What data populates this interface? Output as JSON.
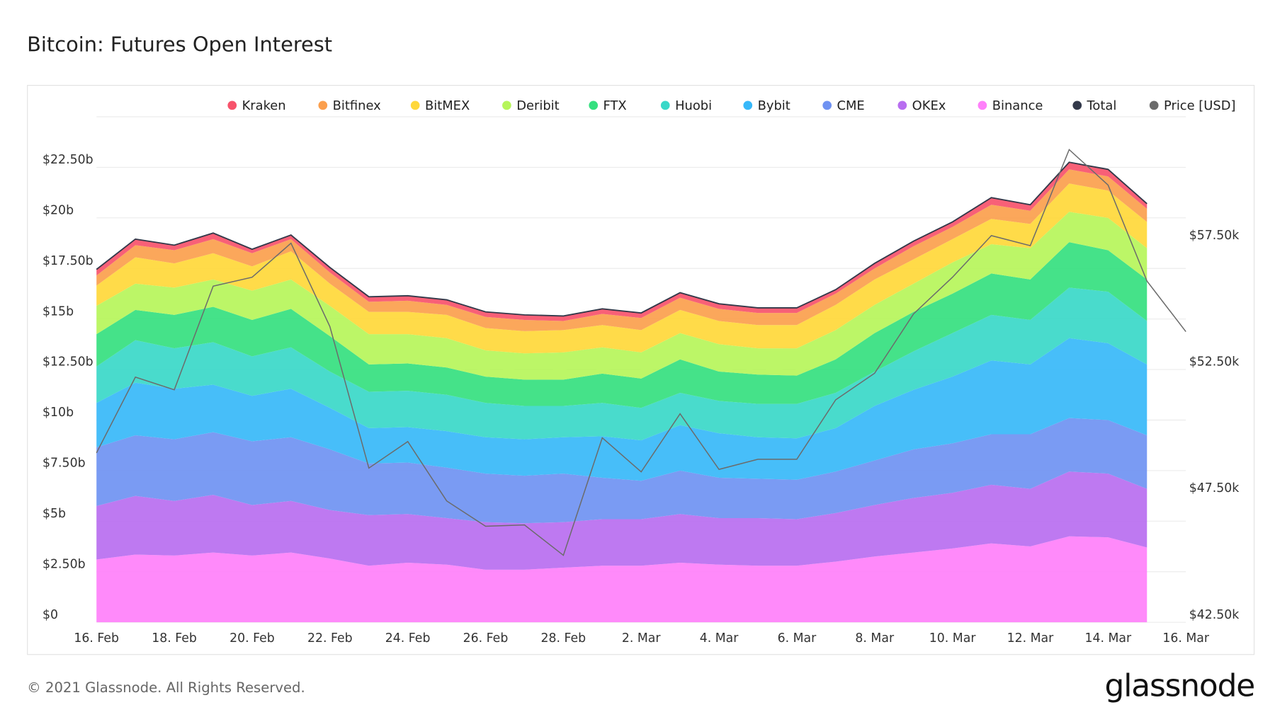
{
  "chart_data": {
    "type": "area",
    "title": "Bitcoin: Futures Open Interest",
    "stacked": true,
    "x": [
      0,
      1,
      2,
      3,
      4,
      5,
      6,
      7,
      8,
      9,
      10,
      11,
      12,
      13,
      14,
      15,
      16,
      17,
      18,
      19,
      20,
      21,
      22,
      23,
      24,
      25,
      26,
      27,
      28
    ],
    "xlim": [
      0,
      28
    ],
    "xticks": [
      {
        "value": 0,
        "label": "16. Feb"
      },
      {
        "value": 2,
        "label": "18. Feb"
      },
      {
        "value": 4,
        "label": "20. Feb"
      },
      {
        "value": 6,
        "label": "22. Feb"
      },
      {
        "value": 8,
        "label": "24. Feb"
      },
      {
        "value": 10,
        "label": "26. Feb"
      },
      {
        "value": 12,
        "label": "28. Feb"
      },
      {
        "value": 14,
        "label": "2. Mar"
      },
      {
        "value": 16,
        "label": "4. Mar"
      },
      {
        "value": 18,
        "label": "6. Mar"
      },
      {
        "value": 20,
        "label": "8. Mar"
      },
      {
        "value": 22,
        "label": "10. Mar"
      },
      {
        "value": 24,
        "label": "12. Mar"
      },
      {
        "value": 26,
        "label": "14. Mar"
      },
      {
        "value": 28,
        "label": "16. Mar"
      }
    ],
    "ylim": [
      0,
      25
    ],
    "yticks": [
      {
        "value": 0,
        "label": "$0"
      },
      {
        "value": 2.5,
        "label": "$2.50b"
      },
      {
        "value": 5,
        "label": "$5b"
      },
      {
        "value": 7.5,
        "label": "$7.50b"
      },
      {
        "value": 10,
        "label": "$10b"
      },
      {
        "value": 12.5,
        "label": "$12.50b"
      },
      {
        "value": 15,
        "label": "$15b"
      },
      {
        "value": 17.5,
        "label": "$17.50b"
      },
      {
        "value": 20,
        "label": "$20b"
      },
      {
        "value": 22.5,
        "label": "$22.50b"
      }
    ],
    "y2lim": [
      42500,
      62500
    ],
    "y2ticks": [
      {
        "value": 42500,
        "label": "$42.50k"
      },
      {
        "value": 47500,
        "label": "$47.50k"
      },
      {
        "value": 52500,
        "label": "$52.50k"
      },
      {
        "value": 57500,
        "label": "$57.50k"
      }
    ],
    "grid": true,
    "series": [
      {
        "name": "Kraken",
        "color": "#f7536b",
        "values": [
          0.3,
          0.3,
          0.25,
          0.3,
          0.2,
          0.2,
          0.25,
          0.25,
          0.25,
          0.25,
          0.25,
          0.25,
          0.25,
          0.25,
          0.25,
          0.25,
          0.25,
          0.25,
          0.25,
          0.2,
          0.25,
          0.25,
          0.25,
          0.35,
          0.3,
          0.35,
          0.35,
          0.25,
          null
        ]
      },
      {
        "name": "Bitfinex",
        "color": "#fb9f4d",
        "values": [
          0.5,
          0.6,
          0.65,
          0.7,
          0.65,
          0.6,
          0.55,
          0.5,
          0.55,
          0.5,
          0.55,
          0.55,
          0.45,
          0.55,
          0.6,
          0.6,
          0.6,
          0.6,
          0.6,
          0.55,
          0.55,
          0.65,
          0.6,
          0.7,
          0.65,
          0.7,
          0.7,
          0.65,
          null
        ]
      },
      {
        "name": "BitMEX",
        "color": "#ffd83a",
        "values": [
          1.0,
          1.3,
          1.2,
          1.3,
          1.2,
          1.4,
          1.1,
          1.1,
          1.1,
          1.15,
          1.1,
          1.1,
          1.1,
          1.1,
          1.1,
          1.15,
          1.15,
          1.15,
          1.15,
          1.25,
          1.25,
          1.2,
          1.15,
          1.25,
          1.2,
          1.4,
          1.35,
          1.3,
          null
        ]
      },
      {
        "name": "Deribit",
        "color": "#b6f55a",
        "values": [
          1.4,
          1.3,
          1.35,
          1.35,
          1.45,
          1.45,
          1.5,
          1.5,
          1.45,
          1.45,
          1.3,
          1.3,
          1.35,
          1.3,
          1.3,
          1.3,
          1.35,
          1.3,
          1.35,
          1.45,
          1.4,
          1.4,
          1.55,
          1.45,
          1.55,
          1.5,
          1.6,
          1.55,
          null
        ]
      },
      {
        "name": "FTX",
        "color": "#35e07f",
        "values": [
          1.6,
          1.5,
          1.65,
          1.75,
          1.8,
          1.9,
          1.75,
          1.35,
          1.35,
          1.35,
          1.3,
          1.3,
          1.3,
          1.45,
          1.45,
          1.65,
          1.45,
          1.45,
          1.4,
          1.65,
          1.9,
          1.95,
          1.95,
          2.05,
          2.0,
          2.25,
          2.05,
          2.05,
          null
        ]
      },
      {
        "name": "Huobi",
        "color": "#3ad8c8",
        "values": [
          1.8,
          2.1,
          2.0,
          2.1,
          1.95,
          2.05,
          1.8,
          1.8,
          1.8,
          1.8,
          1.7,
          1.65,
          1.55,
          1.65,
          1.6,
          1.6,
          1.6,
          1.65,
          1.7,
          1.75,
          1.7,
          1.9,
          2.15,
          2.25,
          2.2,
          2.5,
          2.55,
          2.15,
          null
        ]
      },
      {
        "name": "Bybit",
        "color": "#37b8f9",
        "values": [
          2.2,
          2.6,
          2.5,
          2.35,
          2.25,
          2.4,
          2.05,
          1.75,
          1.75,
          1.8,
          1.8,
          1.8,
          1.8,
          2.05,
          2.0,
          2.25,
          2.2,
          2.05,
          2.05,
          2.15,
          2.7,
          2.95,
          3.3,
          3.65,
          3.45,
          3.95,
          3.8,
          3.5,
          null
        ]
      },
      {
        "name": "CME",
        "color": "#6f92f2",
        "values": [
          2.9,
          3.0,
          3.05,
          3.1,
          3.15,
          3.15,
          3.0,
          2.55,
          2.55,
          2.5,
          2.4,
          2.35,
          2.4,
          2.05,
          1.9,
          2.15,
          2.0,
          1.95,
          1.95,
          2.05,
          2.2,
          2.4,
          2.45,
          2.5,
          2.7,
          2.65,
          2.65,
          2.65,
          null
        ]
      },
      {
        "name": "OKEx",
        "color": "#b86ef0",
        "values": [
          2.65,
          2.9,
          2.7,
          2.85,
          2.5,
          2.55,
          2.4,
          2.5,
          2.4,
          2.3,
          2.35,
          2.3,
          2.25,
          2.3,
          2.3,
          2.4,
          2.3,
          2.35,
          2.3,
          2.4,
          2.55,
          2.7,
          2.75,
          2.9,
          2.85,
          3.2,
          3.15,
          2.9,
          null
        ]
      },
      {
        "name": "Binance",
        "color": "#ff80fa",
        "values": [
          3.1,
          3.35,
          3.3,
          3.45,
          3.3,
          3.45,
          3.15,
          2.8,
          2.95,
          2.85,
          2.6,
          2.6,
          2.7,
          2.8,
          2.8,
          2.95,
          2.85,
          2.8,
          2.8,
          3.0,
          3.25,
          3.45,
          3.65,
          3.9,
          3.75,
          4.25,
          4.2,
          3.7,
          null
        ]
      },
      {
        "name": "Total",
        "color": "#33394a",
        "type": "line",
        "values": [
          17.45,
          18.95,
          18.65,
          19.25,
          18.45,
          19.15,
          17.55,
          16.1,
          16.15,
          15.95,
          15.35,
          15.2,
          15.15,
          15.5,
          15.3,
          16.3,
          15.75,
          15.55,
          15.55,
          16.45,
          17.75,
          18.85,
          19.8,
          21.0,
          20.65,
          22.75,
          22.4,
          20.7,
          null
        ]
      },
      {
        "name": "Price [USD]",
        "color": "#6b6b6b",
        "type": "line",
        "axis": "y2",
        "values": [
          49200,
          52200,
          51700,
          55800,
          56150,
          57500,
          54200,
          48600,
          49650,
          47300,
          46300,
          46350,
          45150,
          49800,
          48450,
          50750,
          48550,
          48950,
          48950,
          51300,
          52350,
          54700,
          56150,
          57800,
          57400,
          61200,
          59800,
          56000,
          54000
        ]
      }
    ]
  },
  "watermark": "glassnode",
  "footer": {
    "copyright": "© 2021 Glassnode. All Rights Reserved.",
    "logo": "glassnode"
  }
}
